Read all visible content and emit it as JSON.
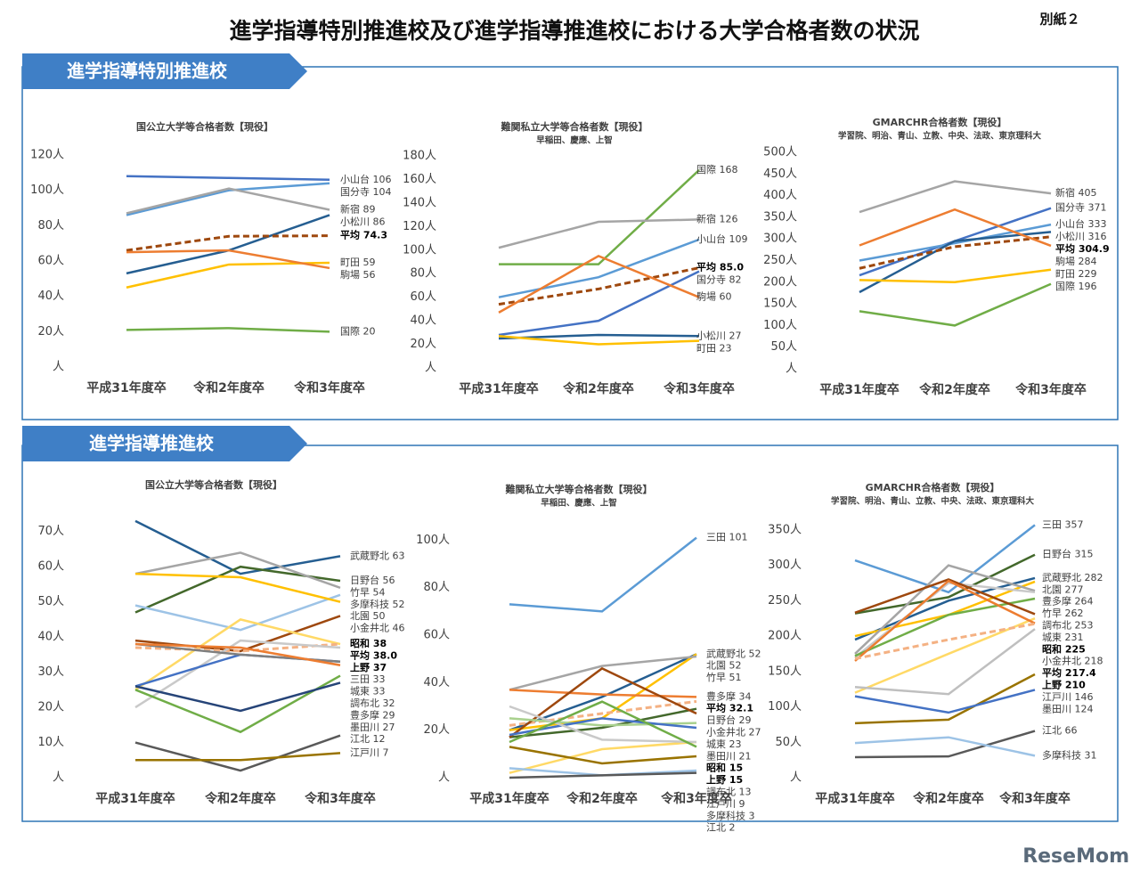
{
  "title": "進学指導特別推進校及び進学指導推進校における大学合格者数の状況",
  "note": "別紙２",
  "sections": [
    "進学指導特別推進校",
    "進学指導推進校"
  ],
  "watermark": "ReseMom",
  "chart_data": [
    {
      "type": "line",
      "title": "国公立大学等合格者数【現役】",
      "categories": [
        "平成31年度卒",
        "令和2年度卒",
        "令和3年度卒"
      ],
      "ylim": [
        0,
        120
      ],
      "yticks": [
        {
          "value": 0,
          "label": "人"
        },
        {
          "value": 20,
          "label": "20人"
        },
        {
          "value": 40,
          "label": "40人"
        },
        {
          "value": 60,
          "label": "60人"
        },
        {
          "value": 80,
          "label": "80人"
        },
        {
          "value": 100,
          "label": "100人"
        },
        {
          "value": 120,
          "label": "120人"
        }
      ],
      "series": [
        {
          "name": "小山台",
          "color": "#4472c4",
          "values": [
            108,
            107,
            106
          ]
        },
        {
          "name": "国分寺",
          "color": "#5b9bd5",
          "values": [
            86,
            100,
            104
          ]
        },
        {
          "name": "新宿",
          "color": "#a5a5a5",
          "values": [
            87,
            101,
            89
          ]
        },
        {
          "name": "小松川",
          "color": "#255e91",
          "values": [
            53,
            66,
            86
          ]
        },
        {
          "name": "平均",
          "color": "#9e480e",
          "dash": true,
          "emphasis": true,
          "values": [
            66,
            74,
            74.3
          ]
        },
        {
          "name": "町田",
          "color": "#ffc000",
          "values": [
            45,
            58,
            59
          ]
        },
        {
          "name": "駒場",
          "color": "#ed7d31",
          "values": [
            65,
            66,
            56
          ]
        },
        {
          "name": "国際",
          "color": "#70ad47",
          "values": [
            21,
            22,
            20
          ]
        }
      ]
    },
    {
      "type": "line",
      "title": "難関私立大学等合格者数【現役】",
      "subtitle": "早稲田、慶應、上智",
      "categories": [
        "平成31年度卒",
        "令和2年度卒",
        "令和3年度卒"
      ],
      "ylim": [
        0,
        180
      ],
      "yticks": [
        {
          "value": 0,
          "label": "人"
        },
        {
          "value": 20,
          "label": "20人"
        },
        {
          "value": 40,
          "label": "40人"
        },
        {
          "value": 60,
          "label": "60人"
        },
        {
          "value": 80,
          "label": "80人"
        },
        {
          "value": 100,
          "label": "100人"
        },
        {
          "value": 120,
          "label": "120人"
        },
        {
          "value": 140,
          "label": "140人"
        },
        {
          "value": 160,
          "label": "160人"
        },
        {
          "value": 180,
          "label": "180人"
        }
      ],
      "series": [
        {
          "name": "国際",
          "color": "#70ad47",
          "values": [
            88,
            88,
            168
          ]
        },
        {
          "name": "新宿",
          "color": "#a5a5a5",
          "values": [
            102,
            124,
            126
          ]
        },
        {
          "name": "小山台",
          "color": "#5b9bd5",
          "values": [
            60,
            77,
            109
          ]
        },
        {
          "name": "平均",
          "color": "#9e480e",
          "dash": true,
          "emphasis": true,
          "values": [
            54,
            67,
            85
          ],
          "value_labels": [
            null,
            null,
            "85.0"
          ]
        },
        {
          "name": "国分寺",
          "color": "#4472c4",
          "values": [
            28,
            40,
            82
          ]
        },
        {
          "name": "駒場",
          "color": "#ed7d31",
          "values": [
            47,
            95,
            60
          ]
        },
        {
          "name": "小松川",
          "color": "#255e91",
          "values": [
            25,
            28,
            27
          ]
        },
        {
          "name": "町田",
          "color": "#ffc000",
          "values": [
            27,
            20,
            23
          ]
        }
      ]
    },
    {
      "type": "line",
      "title": "GMARCHR合格者数【現役】",
      "subtitle": "学習院、明治、青山、立教、中央、法政、東京理科大",
      "categories": [
        "平成31年度卒",
        "令和2年度卒",
        "令和3年度卒"
      ],
      "ylim": [
        0,
        500
      ],
      "yticks": [
        {
          "value": 0,
          "label": "人"
        },
        {
          "value": 50,
          "label": "50人"
        },
        {
          "value": 100,
          "label": "100人"
        },
        {
          "value": 150,
          "label": "150人"
        },
        {
          "value": 200,
          "label": "200人"
        },
        {
          "value": 250,
          "label": "250人"
        },
        {
          "value": 300,
          "label": "300人"
        },
        {
          "value": 350,
          "label": "350人"
        },
        {
          "value": 400,
          "label": "400人"
        },
        {
          "value": 450,
          "label": "450人"
        },
        {
          "value": 500,
          "label": "500人"
        }
      ],
      "series": [
        {
          "name": "新宿",
          "color": "#a5a5a5",
          "values": [
            362,
            433,
            405
          ]
        },
        {
          "name": "国分寺",
          "color": "#4472c4",
          "values": [
            216,
            295,
            371
          ]
        },
        {
          "name": "小山台",
          "color": "#5b9bd5",
          "values": [
            250,
            290,
            333
          ]
        },
        {
          "name": "小松川",
          "color": "#255e91",
          "values": [
            177,
            295,
            316
          ]
        },
        {
          "name": "平均",
          "color": "#9e480e",
          "dash": true,
          "emphasis": true,
          "values": [
            232,
            282,
            304.9
          ]
        },
        {
          "name": "駒場",
          "color": "#ed7d31",
          "values": [
            285,
            368,
            284
          ]
        },
        {
          "name": "町田",
          "color": "#ffc000",
          "values": [
            205,
            200,
            229
          ]
        },
        {
          "name": "国際",
          "color": "#70ad47",
          "values": [
            133,
            100,
            196
          ]
        }
      ]
    },
    {
      "type": "line",
      "title": "国公立大学等合格者数【現役】",
      "categories": [
        "平成31年度卒",
        "令和2年度卒",
        "令和3年度卒"
      ],
      "ylim": [
        0,
        75
      ],
      "yticks": [
        {
          "value": 0,
          "label": "人"
        },
        {
          "value": 10,
          "label": "10人"
        },
        {
          "value": 20,
          "label": "20人"
        },
        {
          "value": 30,
          "label": "30人"
        },
        {
          "value": 40,
          "label": "40人"
        },
        {
          "value": 50,
          "label": "50人"
        },
        {
          "value": 60,
          "label": "60人"
        },
        {
          "value": 70,
          "label": "70人"
        }
      ],
      "series": [
        {
          "name": "武蔵野北",
          "color": "#255e91",
          "values": [
            73,
            58,
            63
          ]
        },
        {
          "name": "日野台",
          "color": "#43682b",
          "values": [
            47,
            60,
            56
          ]
        },
        {
          "name": "竹早",
          "color": "#a5a5a5",
          "values": [
            58,
            64,
            54
          ]
        },
        {
          "name": "多摩科技",
          "color": "#9dc3e6",
          "values": [
            49,
            42,
            52
          ]
        },
        {
          "name": "北園",
          "color": "#ffc000",
          "values": [
            58,
            57,
            50
          ]
        },
        {
          "name": "小金井北",
          "color": "#9e480e",
          "values": [
            39,
            36,
            46
          ]
        },
        {
          "name": "昭和",
          "color": "#ffd966",
          "emphasis": true,
          "values": [
            25,
            45,
            38
          ]
        },
        {
          "name": "平均",
          "color": "#f4b183",
          "dash": true,
          "emphasis": true,
          "values": [
            37,
            36,
            38
          ],
          "value_labels": [
            null,
            null,
            "38.0"
          ]
        },
        {
          "name": "上野",
          "color": "#c9c9c9",
          "emphasis": true,
          "values": [
            20,
            39,
            37
          ]
        },
        {
          "name": "三田",
          "color": "#4472c4",
          "values": [
            26,
            35,
            33
          ]
        },
        {
          "name": "城東",
          "color": "#7f7f7f",
          "values": [
            38,
            35,
            33
          ]
        },
        {
          "name": "調布北",
          "color": "#ed7d31",
          "values": [
            38,
            37,
            32
          ]
        },
        {
          "name": "豊多摩",
          "color": "#70ad47",
          "values": [
            25,
            13,
            29
          ]
        },
        {
          "name": "墨田川",
          "color": "#264478",
          "values": [
            26,
            19,
            27
          ]
        },
        {
          "name": "江北",
          "color": "#595959",
          "values": [
            10,
            2,
            12
          ]
        },
        {
          "name": "江戸川",
          "color": "#997300",
          "values": [
            5,
            5,
            7
          ]
        }
      ]
    },
    {
      "type": "line",
      "title": "難関私立大学等合格者数【現役】",
      "subtitle": "早稲田、慶應、上智",
      "categories": [
        "平成31年度卒",
        "令和2年度卒",
        "令和3年度卒"
      ],
      "ylim": [
        0,
        105
      ],
      "yticks": [
        {
          "value": 0,
          "label": "人"
        },
        {
          "value": 20,
          "label": "20人"
        },
        {
          "value": 40,
          "label": "40人"
        },
        {
          "value": 60,
          "label": "60人"
        },
        {
          "value": 80,
          "label": "80人"
        },
        {
          "value": 100,
          "label": "100人"
        }
      ],
      "series": [
        {
          "name": "三田",
          "color": "#5b9bd5",
          "values": [
            73,
            70,
            101
          ]
        },
        {
          "name": "武蔵野北",
          "color": "#255e91",
          "values": [
            20,
            34,
            52
          ]
        },
        {
          "name": "北園",
          "color": "#ffc000",
          "values": [
            20,
            25,
            52
          ]
        },
        {
          "name": "竹早",
          "color": "#a5a5a5",
          "values": [
            37,
            47,
            51
          ]
        },
        {
          "name": "豊多摩",
          "color": "#ed7d31",
          "values": [
            37,
            35,
            34
          ]
        },
        {
          "name": "平均",
          "color": "#f4b183",
          "dash": true,
          "emphasis": true,
          "values": [
            22,
            27,
            32.1
          ]
        },
        {
          "name": "日野台",
          "color": "#43682b",
          "values": [
            17,
            21,
            29
          ]
        },
        {
          "name": "小金井北",
          "color": "#9e480e",
          "values": [
            17,
            46,
            27
          ]
        },
        {
          "name": "城東",
          "color": "#a9d18e",
          "values": [
            25,
            22,
            23
          ]
        },
        {
          "name": "墨田川",
          "color": "#4472c4",
          "values": [
            18,
            25,
            21
          ]
        },
        {
          "name": "昭和",
          "color": "#ffd966",
          "emphasis": true,
          "values": [
            2,
            12,
            15
          ]
        },
        {
          "name": "上野",
          "color": "#c9c9c9",
          "emphasis": true,
          "values": [
            30,
            16,
            15
          ]
        },
        {
          "name": "調布北",
          "color": "#70ad47",
          "values": [
            15,
            32,
            13
          ]
        },
        {
          "name": "江戸川",
          "color": "#997300",
          "values": [
            13,
            6,
            9
          ]
        },
        {
          "name": "多摩科技",
          "color": "#9dc3e6",
          "values": [
            4,
            1,
            3
          ]
        },
        {
          "name": "江北",
          "color": "#595959",
          "values": [
            0,
            1,
            2
          ]
        }
      ]
    },
    {
      "type": "line",
      "title": "GMARCHR合格者数【現役】",
      "subtitle": "学習院、明治、青山、立教、中央、法政、東京理科大",
      "categories": [
        "平成31年度卒",
        "令和2年度卒",
        "令和3年度卒"
      ],
      "ylim": [
        0,
        370
      ],
      "yticks": [
        {
          "value": 0,
          "label": "人"
        },
        {
          "value": 50,
          "label": "50人"
        },
        {
          "value": 100,
          "label": "100人"
        },
        {
          "value": 150,
          "label": "150人"
        },
        {
          "value": 200,
          "label": "200人"
        },
        {
          "value": 250,
          "label": "250人"
        },
        {
          "value": 300,
          "label": "300人"
        },
        {
          "value": 350,
          "label": "350人"
        }
      ],
      "series": [
        {
          "name": "三田",
          "color": "#5b9bd5",
          "values": [
            307,
            262,
            357
          ]
        },
        {
          "name": "日野台",
          "color": "#43682b",
          "values": [
            232,
            255,
            315
          ]
        },
        {
          "name": "武蔵野北",
          "color": "#255e91",
          "values": [
            195,
            250,
            282
          ]
        },
        {
          "name": "北園",
          "color": "#ffc000",
          "values": [
            200,
            230,
            277
          ]
        },
        {
          "name": "豊多摩",
          "color": "#a5a5a5",
          "values": [
            175,
            300,
            264
          ]
        },
        {
          "name": "竹早",
          "color": "#c9c9c9",
          "values": [
            170,
            275,
            262
          ]
        },
        {
          "name": "調布北",
          "color": "#70ad47",
          "values": [
            172,
            230,
            253
          ]
        },
        {
          "name": "城東",
          "color": "#9e480e",
          "values": [
            233,
            280,
            231
          ]
        },
        {
          "name": "昭和",
          "color": "#ffd966",
          "emphasis": true,
          "values": [
            120,
            175,
            225
          ]
        },
        {
          "name": "小金井北",
          "color": "#ed7d31",
          "values": [
            165,
            278,
            218
          ]
        },
        {
          "name": "平均",
          "color": "#f4b183",
          "dash": true,
          "emphasis": true,
          "values": [
            168,
            195,
            217.4
          ]
        },
        {
          "name": "上野",
          "color": "#bfbfbf",
          "emphasis": true,
          "values": [
            128,
            118,
            210
          ]
        },
        {
          "name": "江戸川",
          "color": "#997300",
          "values": [
            77,
            82,
            146
          ]
        },
        {
          "name": "墨田川",
          "color": "#4472c4",
          "values": [
            115,
            92,
            124
          ]
        },
        {
          "name": "江北",
          "color": "#595959",
          "values": [
            29,
            30,
            66
          ]
        },
        {
          "name": "多摩科技",
          "color": "#9dc3e6",
          "values": [
            49,
            57,
            31
          ]
        }
      ]
    }
  ]
}
